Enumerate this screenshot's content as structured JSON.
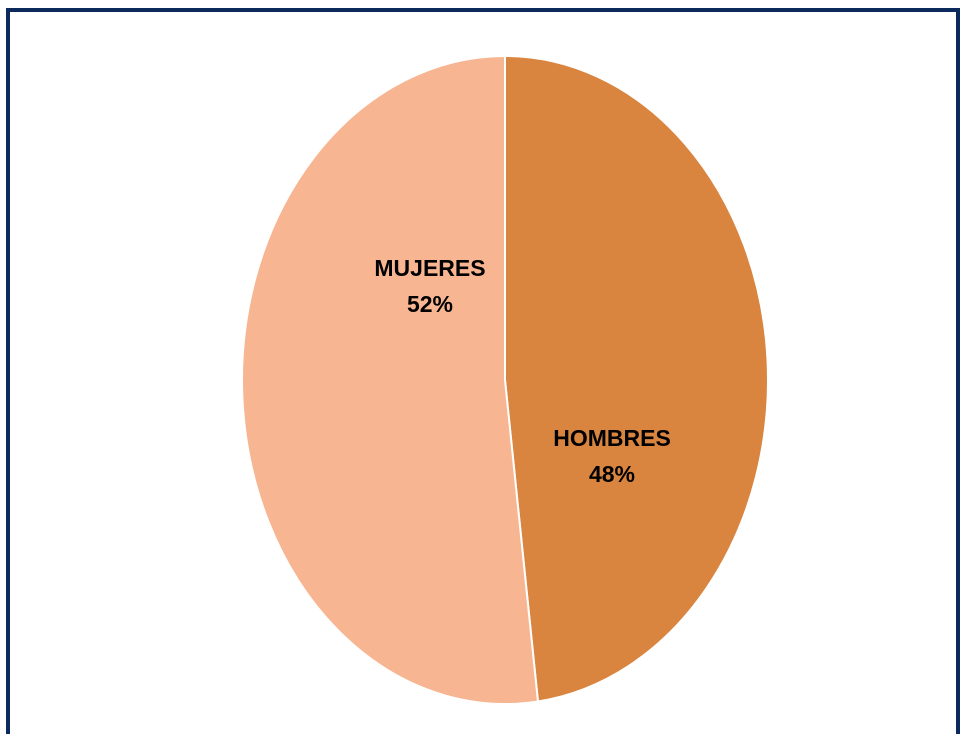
{
  "chart_data": {
    "type": "pie",
    "categories": [
      "HOMBRES",
      "MUJERES"
    ],
    "values": [
      48,
      52
    ],
    "value_labels": [
      "48%",
      "52%"
    ],
    "colors": [
      "#d9843f",
      "#f8b591"
    ]
  }
}
